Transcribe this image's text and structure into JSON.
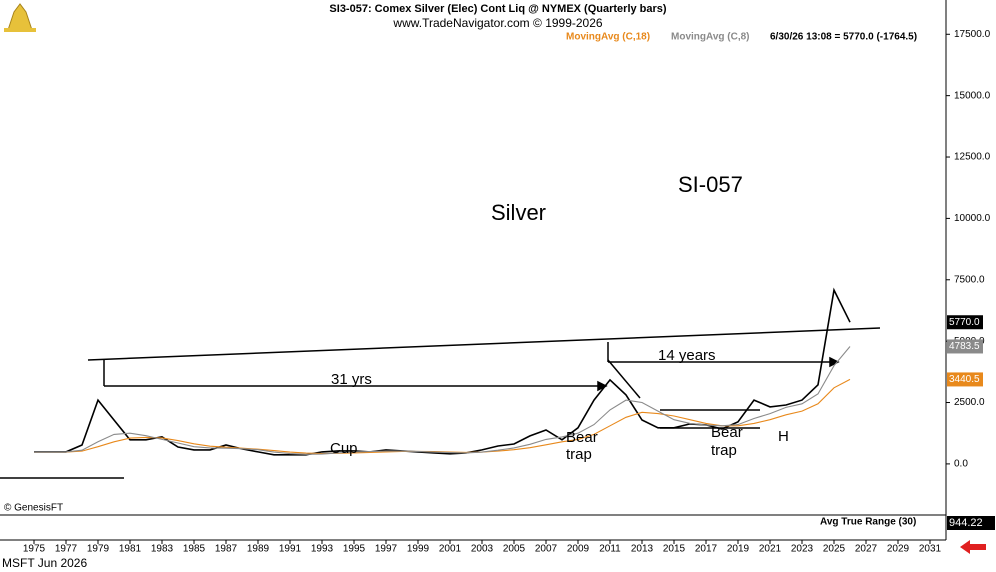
{
  "chart_data": {
    "type": "line",
    "title": "SI3-057:  Comex Silver (Elec) Cont Liq @ NYMEX  (Quarterly bars)",
    "subtitle": "www.TradeNavigator.com © 1999-2026",
    "status": "6/30/26 13:08 = 5770.0 (-1764.5)",
    "x": [
      1975,
      1976,
      1977,
      1978,
      1979,
      1980,
      1981,
      1982,
      1983,
      1984,
      1985,
      1986,
      1987,
      1988,
      1989,
      1990,
      1991,
      1992,
      1993,
      1994,
      1995,
      1996,
      1997,
      1998,
      1999,
      2000,
      2001,
      2002,
      2003,
      2004,
      2005,
      2006,
      2007,
      2008,
      2009,
      2010,
      2011,
      2012,
      2013,
      2014,
      2015,
      2016,
      2017,
      2018,
      2019,
      2020,
      2021,
      2022,
      2023,
      2024,
      2025,
      2026
    ],
    "series": [
      {
        "name": "Price",
        "color": "#000000",
        "values": [
          490,
          490,
          490,
          770,
          2600,
          1790,
          980,
          980,
          1100,
          690,
          570,
          570,
          770,
          610,
          490,
          370,
          370,
          370,
          490,
          530,
          530,
          490,
          570,
          530,
          490,
          450,
          410,
          450,
          570,
          730,
          810,
          1140,
          1380,
          980,
          1470,
          2600,
          3420,
          2810,
          1790,
          1470,
          1470,
          1630,
          1590,
          1420,
          1710,
          2600,
          2320,
          2400,
          2600,
          3220,
          7080,
          5770
        ]
      },
      {
        "name": "MovingAvg (C,18)",
        "color": "#e8891c",
        "values": [
          480,
          480,
          480,
          520,
          700,
          900,
          1050,
          1080,
          1060,
          950,
          820,
          720,
          680,
          640,
          600,
          540,
          480,
          440,
          420,
          430,
          450,
          470,
          490,
          510,
          510,
          500,
          480,
          470,
          480,
          520,
          580,
          660,
          780,
          900,
          1000,
          1200,
          1550,
          1900,
          2100,
          2050,
          1950,
          1800,
          1650,
          1550,
          1550,
          1650,
          1800,
          2000,
          2150,
          2450,
          3100,
          3440.5
        ]
      },
      {
        "name": "MovingAvg (C,8)",
        "color": "#8a8a8a",
        "values": [
          480,
          480,
          490,
          560,
          900,
          1200,
          1250,
          1150,
          1000,
          850,
          700,
          650,
          640,
          620,
          580,
          480,
          420,
          390,
          400,
          450,
          490,
          500,
          520,
          520,
          510,
          480,
          460,
          450,
          480,
          560,
          650,
          800,
          1000,
          1100,
          1250,
          1600,
          2200,
          2600,
          2500,
          2150,
          1800,
          1650,
          1580,
          1550,
          1600,
          1850,
          2050,
          2300,
          2450,
          2850,
          4000,
          4783.5
        ]
      }
    ],
    "markers": [
      {
        "value": 5770,
        "label": "5770.0",
        "color": "#000000",
        "text_color": "#ffffff"
      },
      {
        "value": 4783.5,
        "label": "4783.5",
        "color": "#8a8a8a",
        "text_color": "#ffffff"
      },
      {
        "value": 3440.5,
        "label": "3440.5",
        "color": "#e8891c",
        "text_color": "#ffffff"
      }
    ],
    "annotations": [
      "Silver",
      "SI-057",
      "31 yrs",
      "14 years",
      "Cup",
      "Bear",
      "trap",
      "Bear",
      "trap",
      "H"
    ],
    "xlim": [
      1973,
      2032
    ],
    "xticks": [
      1975,
      1977,
      1979,
      1981,
      1983,
      1985,
      1987,
      1989,
      1991,
      1993,
      1995,
      1997,
      1999,
      2001,
      2003,
      2005,
      2007,
      2009,
      2011,
      2013,
      2015,
      2017,
      2019,
      2021,
      2023,
      2025,
      2027,
      2029,
      2031
    ],
    "ylim": [
      -2000,
      18000
    ],
    "yticks": [
      {
        "value": 0,
        "label": "0.0"
      },
      {
        "value": 2500,
        "label": "2500.0"
      },
      {
        "value": 5000,
        "label": "5000.0"
      },
      {
        "value": 7500,
        "label": "7500.0"
      },
      {
        "value": 10000,
        "label": "10000.0"
      },
      {
        "value": 12500,
        "label": "12500.0"
      },
      {
        "value": 15000,
        "label": "15000.0"
      },
      {
        "value": 17500,
        "label": "17500.0"
      }
    ],
    "atr_title": "Avg True Range (30)",
    "atr_label": "944.22",
    "copyright": "© GenesisFT",
    "footer": "MSFT Jun 2026"
  }
}
